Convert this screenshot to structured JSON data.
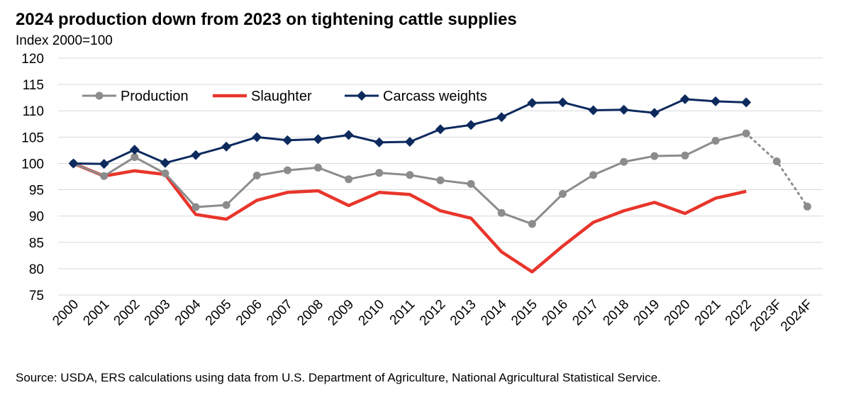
{
  "chart_data": {
    "type": "line",
    "title": "2024 production down from 2023 on tightening cattle supplies",
    "ylabel": "Index 2000=100",
    "xlabel": "",
    "ylim": [
      75,
      120
    ],
    "yticks": [
      75,
      80,
      85,
      90,
      95,
      100,
      105,
      110,
      115,
      120
    ],
    "grid": "horizontal",
    "legend_position": "top-left",
    "categories": [
      "2000",
      "2001",
      "2002",
      "2003",
      "2004",
      "2005",
      "2006",
      "2007",
      "2008",
      "2009",
      "2010",
      "2011",
      "2012",
      "2013",
      "2014",
      "2015",
      "2016",
      "2017",
      "2018",
      "2019",
      "2020",
      "2021",
      "2022",
      "2023F",
      "2024F"
    ],
    "series": [
      {
        "name": "Production",
        "color": "#8c8c8c",
        "marker": "circle",
        "values": [
          100,
          97.6,
          101.2,
          98.1,
          91.7,
          92.1,
          97.7,
          98.7,
          99.2,
          97.0,
          98.2,
          97.8,
          96.8,
          96.1,
          90.6,
          88.5,
          94.2,
          97.8,
          100.3,
          101.4,
          101.5,
          104.3,
          105.7,
          null,
          null
        ],
        "forecast": {
          "categories": [
            "2022",
            "2023F",
            "2024F"
          ],
          "values": [
            105.7,
            100.4,
            91.8
          ],
          "style": "dotted"
        }
      },
      {
        "name": "Slaughter",
        "color": "#e8352b",
        "marker": "none",
        "values": [
          100,
          97.6,
          98.6,
          97.9,
          90.3,
          89.4,
          93.0,
          94.5,
          94.8,
          92.0,
          94.5,
          94.1,
          91.0,
          89.6,
          83.2,
          79.4,
          84.3,
          88.8,
          91.0,
          92.6,
          90.5,
          93.4,
          94.7,
          null,
          null
        ]
      },
      {
        "name": "Carcass weights",
        "color": "#0d2a5e",
        "marker": "diamond",
        "values": [
          100,
          99.9,
          102.6,
          100.1,
          101.6,
          103.2,
          105.0,
          104.4,
          104.6,
          105.4,
          104.0,
          104.1,
          106.5,
          107.3,
          108.8,
          111.5,
          111.6,
          110.1,
          110.2,
          109.6,
          112.2,
          111.8,
          111.6,
          null,
          null
        ]
      }
    ]
  },
  "source": "Source: USDA, ERS calculations using data from U.S. Department of Agriculture, National Agricultural Statistical Service."
}
